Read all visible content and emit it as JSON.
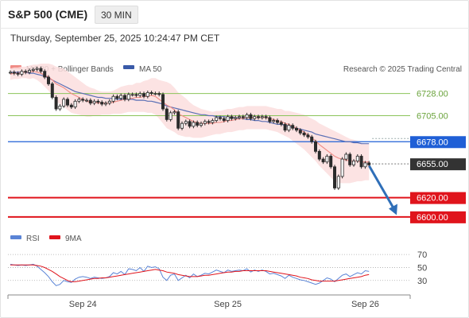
{
  "header": {
    "symbol": "S&P 500 (CME)",
    "timeframe": "30 MIN",
    "datetime": "Thursday, September 25, 2025 10:24:47 PM CET"
  },
  "legend": {
    "ma20_label": "MA 20 + Bollinger Bands",
    "ma50_label": "MA 50",
    "credit": "Research © 2025 Trading Central",
    "rsi_label": "RSI",
    "ma9_label": "9MA"
  },
  "colors": {
    "candle": "#2b2b2b",
    "bollinger_fill": "#fcdede",
    "ma20": "#f08b85",
    "ma50": "#5a6fb5",
    "resistance_green": "#8bc45a",
    "pivot_blue": "#1f5fd6",
    "support_red": "#e0141c",
    "last_price": "#333333",
    "arrow": "#2f6fb8",
    "rsi": "#5a84d6",
    "rsi_ma9": "#e0141c"
  },
  "chart_data": [
    {
      "type": "candlestick",
      "title": "S&P 500 (CME) 30 MIN",
      "x_labels": [
        "Sep 24",
        "Sep 25",
        "Sep 26"
      ],
      "x_label_index": [
        19,
        57,
        93
      ],
      "ylim": [
        6590,
        6745
      ],
      "last_price": 6655.0,
      "levels": [
        {
          "value": 6728.0,
          "label": "6728.00",
          "kind": "resistance"
        },
        {
          "value": 6705.0,
          "label": "6705.00",
          "kind": "resistance"
        },
        {
          "value": 6678.0,
          "label": "6678.00",
          "kind": "pivot"
        },
        {
          "value": 6655.0,
          "label": "6655.00",
          "kind": "last"
        },
        {
          "value": 6620.0,
          "label": "6620.00",
          "kind": "support"
        },
        {
          "value": 6600.0,
          "label": "6600.00",
          "kind": "support"
        }
      ],
      "forecast_arrow": {
        "from_index": 93,
        "from_value": 6653,
        "to_index": 100,
        "to_value": 6602
      },
      "close": [
        6750,
        6749,
        6748,
        6751,
        6750,
        6752,
        6753,
        6754,
        6751,
        6745,
        6738,
        6724,
        6712,
        6715,
        6722,
        6716,
        6714,
        6720,
        6722,
        6721,
        6721,
        6718,
        6720,
        6719,
        6717,
        6718,
        6720,
        6725,
        6723,
        6726,
        6722,
        6727,
        6727,
        6726,
        6728,
        6725,
        6729,
        6728,
        6728,
        6727,
        6712,
        6701,
        6708,
        6709,
        6692,
        6697,
        6699,
        6694,
        6698,
        6695,
        6697,
        6699,
        6698,
        6700,
        6703,
        6702,
        6700,
        6704,
        6702,
        6703,
        6704,
        6703,
        6706,
        6702,
        6704,
        6703,
        6704,
        6703,
        6699,
        6700,
        6698,
        6696,
        6690,
        6695,
        6692,
        6690,
        6687,
        6685,
        6683,
        6678,
        6668,
        6660,
        6657,
        6663,
        6652,
        6630,
        6642,
        6660,
        6665,
        6654,
        6658,
        6663,
        6652,
        6656,
        6654
      ],
      "ma20": [
        6748,
        6749,
        6749,
        6750,
        6750,
        6750,
        6751,
        6750,
        6749,
        6747,
        6745,
        6742,
        6738,
        6736,
        6734,
        6731,
        6728,
        6726,
        6724,
        6722,
        6720,
        6719,
        6719,
        6718,
        6718,
        6718,
        6718,
        6719,
        6720,
        6721,
        6722,
        6723,
        6723,
        6724,
        6724,
        6725,
        6725,
        6726,
        6725,
        6722,
        6719,
        6716,
        6714,
        6711,
        6707,
        6705,
        6703,
        6701,
        6699,
        6698,
        6697,
        6697,
        6697,
        6697,
        6698,
        6698,
        6699,
        6700,
        6700,
        6701,
        6702,
        6702,
        6703,
        6703,
        6703,
        6703,
        6703,
        6703,
        6702,
        6701,
        6700,
        6699,
        6697,
        6696,
        6694,
        6692,
        6690,
        6688,
        6685,
        6682,
        6679,
        6675,
        6672,
        6669,
        6666,
        6663,
        6661,
        6660,
        6659,
        6658,
        6658,
        6658,
        6657,
        6657,
        6657
      ],
      "ma50": [
        6750,
        6750,
        6750,
        6750,
        6750,
        6749,
        6749,
        6748,
        6747,
        6746,
        6744,
        6742,
        6740,
        6738,
        6736,
        6734,
        6732,
        6730,
        6729,
        6728,
        6727,
        6726,
        6725,
        6724,
        6724,
        6723,
        6723,
        6723,
        6722,
        6722,
        6722,
        6722,
        6722,
        6721,
        6721,
        6721,
        6720,
        6720,
        6719,
        6718,
        6717,
        6715,
        6714,
        6713,
        6712,
        6711,
        6710,
        6709,
        6708,
        6707,
        6706,
        6706,
        6705,
        6705,
        6704,
        6704,
        6704,
        6703,
        6703,
        6703,
        6702,
        6702,
        6701,
        6701,
        6700,
        6700,
        6699,
        6699,
        6698,
        6697,
        6696,
        6696,
        6695,
        6694,
        6693,
        6692,
        6691,
        6690,
        6689,
        6688,
        6686,
        6685,
        6684,
        6683,
        6682,
        6681,
        6680,
        6679,
        6678,
        6678,
        6677,
        6677,
        6676,
        6676,
        6676
      ],
      "band_halfwidth": [
        6,
        6,
        6,
        6,
        6,
        7,
        7,
        8,
        10,
        12,
        14,
        16,
        18,
        19,
        20,
        20,
        20,
        19,
        18,
        17,
        16,
        15,
        14,
        13,
        12,
        12,
        12,
        12,
        13,
        14,
        14,
        14,
        14,
        15,
        15,
        16,
        17,
        18,
        19,
        20,
        22,
        24,
        24,
        23,
        22,
        21,
        20,
        18,
        17,
        16,
        15,
        14,
        13,
        12,
        12,
        12,
        12,
        12,
        12,
        12,
        12,
        12,
        12,
        12,
        12,
        12,
        12,
        12,
        12,
        12,
        12,
        13,
        13,
        14,
        15,
        16,
        17,
        18,
        19,
        20,
        21,
        22,
        23,
        24,
        25,
        26,
        26,
        25,
        24,
        23,
        22,
        21,
        20,
        19,
        19
      ]
    },
    {
      "type": "line",
      "title": "RSI",
      "ylim": [
        15,
        80
      ],
      "y_ticks": [
        70,
        50,
        30
      ],
      "series": [
        {
          "name": "RSI",
          "values": [
            55,
            54,
            53,
            54,
            53,
            54,
            55,
            52,
            47,
            42,
            36,
            28,
            22,
            24,
            30,
            28,
            27,
            32,
            35,
            36,
            35,
            33,
            35,
            34,
            33,
            34,
            36,
            42,
            40,
            44,
            39,
            48,
            47,
            45,
            50,
            44,
            52,
            50,
            51,
            48,
            35,
            30,
            38,
            40,
            30,
            34,
            38,
            34,
            40,
            36,
            38,
            41,
            40,
            43,
            46,
            44,
            42,
            46,
            44,
            45,
            46,
            45,
            48,
            43,
            46,
            44,
            46,
            44,
            40,
            41,
            39,
            37,
            33,
            38,
            35,
            33,
            31,
            30,
            28,
            26,
            24,
            26,
            30,
            34,
            32,
            28,
            33,
            38,
            40,
            36,
            39,
            42,
            40,
            45,
            44
          ]
        },
        {
          "name": "9MA",
          "values": [
            54,
            54,
            54,
            54,
            54,
            54,
            54,
            53,
            52,
            50,
            47,
            44,
            40,
            36,
            33,
            30,
            28,
            28,
            29,
            30,
            31,
            32,
            33,
            33,
            34,
            34,
            35,
            36,
            37,
            38,
            39,
            40,
            41,
            42,
            43,
            44,
            45,
            46,
            47,
            46,
            45,
            43,
            42,
            41,
            39,
            38,
            37,
            36,
            36,
            36,
            37,
            38,
            38,
            39,
            40,
            41,
            42,
            43,
            43,
            44,
            44,
            45,
            45,
            45,
            45,
            45,
            45,
            45,
            44,
            43,
            42,
            41,
            40,
            39,
            38,
            37,
            35,
            34,
            33,
            31,
            30,
            29,
            29,
            29,
            29,
            29,
            30,
            31,
            32,
            33,
            34,
            35,
            36,
            38,
            39
          ]
        }
      ]
    }
  ]
}
